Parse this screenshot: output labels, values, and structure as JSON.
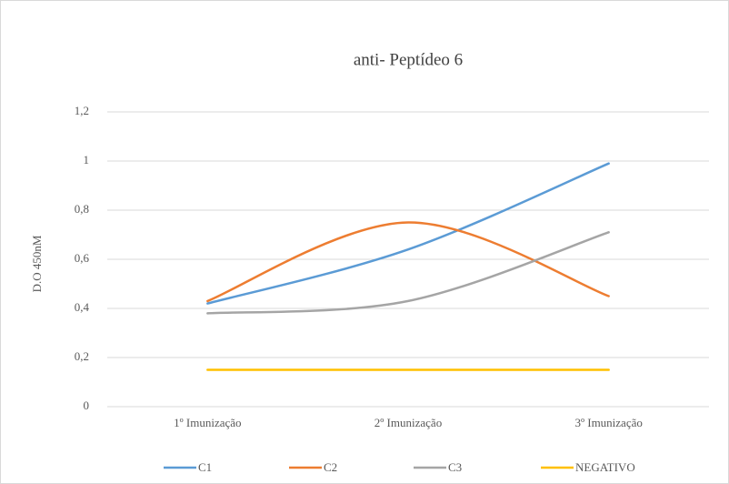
{
  "chart_data": {
    "type": "line",
    "title": "anti- Peptídeo 6",
    "y_label": "D.O 450nM",
    "categories": [
      "1º Imunização",
      "2º Imunização",
      "3º Imunização"
    ],
    "series": [
      {
        "name": "C1",
        "color": "#5b9bd5",
        "values": [
          0.42,
          0.64,
          0.99
        ]
      },
      {
        "name": "C2",
        "color": "#ed7d31",
        "values": [
          0.43,
          0.75,
          0.45
        ]
      },
      {
        "name": "C3",
        "color": "#a5a5a5",
        "values": [
          0.38,
          0.43,
          0.71
        ]
      },
      {
        "name": "NEGATIVO",
        "color": "#ffc000",
        "values": [
          0.15,
          0.15,
          0.15
        ]
      }
    ],
    "smooth": true,
    "ylim": [
      0,
      1.2
    ],
    "yticks": [
      0,
      {
        "value": 0.2,
        "label": "0,2"
      },
      {
        "value": 0.4,
        "label": "0,4"
      },
      {
        "value": 0.6,
        "label": "0,6"
      },
      {
        "value": 0.8,
        "label": "0,8"
      },
      1,
      {
        "value": 1.2,
        "label": "1,2"
      }
    ],
    "grid": true,
    "legend": "bottom"
  }
}
